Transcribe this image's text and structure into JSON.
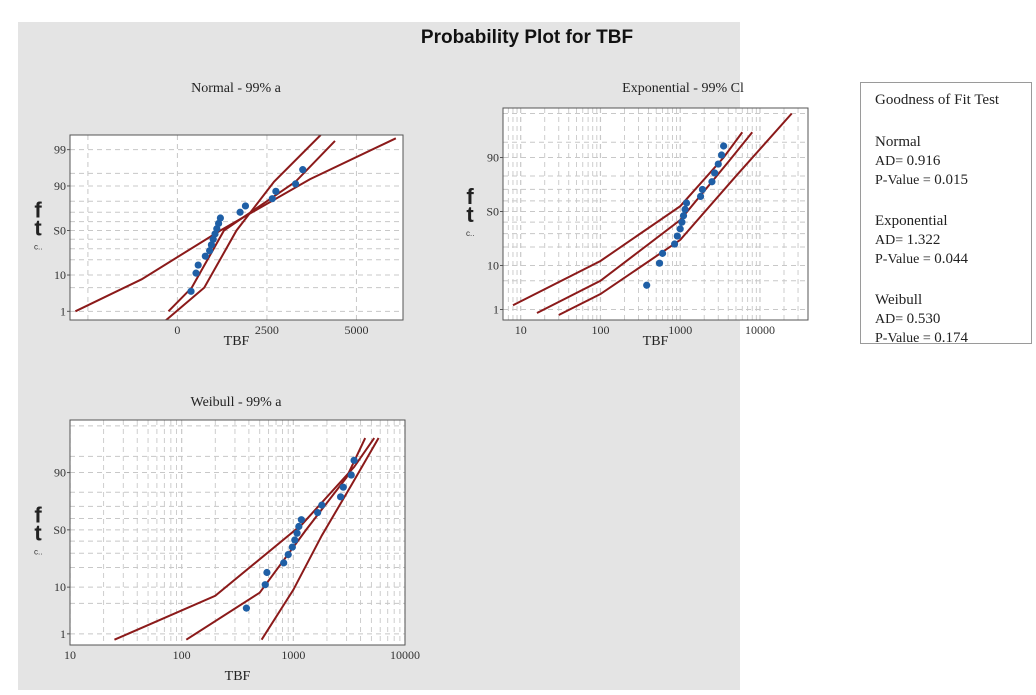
{
  "figure_title": "Probability Plot for TBF",
  "colors": {
    "panel_bg": "#e4e4e4",
    "plot_bg": "#ffffff",
    "fit_line": "#8b1a1a",
    "point": "#1f5fa6",
    "grid": "#c8c8c8"
  },
  "chart_data": [
    {
      "type": "scatter",
      "title": "Normal - 99% a",
      "ylabel": "ft",
      "ylabel_sub": "c..",
      "xlabel": "TBF",
      "x_scale": "linear",
      "xlim": [
        -3000,
        6300
      ],
      "x_ticks": [
        0,
        2500,
        5000
      ],
      "x_tick_labels": [
        "0",
        "2500",
        "5000"
      ],
      "y_ticks": [
        1,
        10,
        50,
        90,
        99
      ],
      "y_tick_labels": [
        "1",
        "10",
        "S0",
        "90",
        "99"
      ],
      "grid": true,
      "points": [
        {
          "x": 380,
          "y": 4
        },
        {
          "x": 520,
          "y": 11
        },
        {
          "x": 580,
          "y": 16
        },
        {
          "x": 780,
          "y": 23
        },
        {
          "x": 900,
          "y": 28
        },
        {
          "x": 950,
          "y": 34
        },
        {
          "x": 1000,
          "y": 40
        },
        {
          "x": 1050,
          "y": 46
        },
        {
          "x": 1100,
          "y": 52
        },
        {
          "x": 1150,
          "y": 58
        },
        {
          "x": 1200,
          "y": 64
        },
        {
          "x": 1750,
          "y": 70
        },
        {
          "x": 1900,
          "y": 76
        },
        {
          "x": 2650,
          "y": 82
        },
        {
          "x": 2750,
          "y": 87
        },
        {
          "x": 3300,
          "y": 91
        },
        {
          "x": 3500,
          "y": 96
        }
      ],
      "lines": [
        {
          "name": "lower",
          "points": [
            [
              -2850,
              1
            ],
            [
              -1000,
              8
            ],
            [
              1200,
              50
            ],
            [
              3700,
              93
            ],
            [
              6100,
              99.6
            ]
          ]
        },
        {
          "name": "fit",
          "points": [
            [
              -250,
              1
            ],
            [
              400,
              5
            ],
            [
              1300,
              50
            ],
            [
              3300,
              92
            ],
            [
              4400,
              99.5
            ]
          ]
        },
        {
          "name": "upper",
          "points": [
            [
              -400,
              0.4
            ],
            [
              750,
              5
            ],
            [
              1650,
              50
            ],
            [
              2700,
              92
            ],
            [
              4000,
              99.7
            ]
          ]
        }
      ]
    },
    {
      "type": "scatter",
      "title": "Exponential - 99% Cl",
      "ylabel": "ft",
      "ylabel_sub": "c..",
      "xlabel": "TBF",
      "x_scale": "log",
      "xlim": [
        6,
        40000
      ],
      "x_ticks": [
        10,
        100,
        1000,
        10000
      ],
      "x_tick_labels": [
        "10",
        "100",
        "1000",
        "10000"
      ],
      "y_ticks": [
        1,
        10,
        50,
        90
      ],
      "y_tick_labels": [
        "1",
        "10",
        "S0",
        "90"
      ],
      "grid": true,
      "points": [
        {
          "x": 380,
          "y": 4
        },
        {
          "x": 550,
          "y": 11
        },
        {
          "x": 600,
          "y": 16
        },
        {
          "x": 850,
          "y": 22
        },
        {
          "x": 920,
          "y": 28
        },
        {
          "x": 1000,
          "y": 34
        },
        {
          "x": 1050,
          "y": 40
        },
        {
          "x": 1100,
          "y": 46
        },
        {
          "x": 1150,
          "y": 52
        },
        {
          "x": 1200,
          "y": 58
        },
        {
          "x": 1800,
          "y": 64
        },
        {
          "x": 1900,
          "y": 70
        },
        {
          "x": 2500,
          "y": 76
        },
        {
          "x": 2700,
          "y": 82
        },
        {
          "x": 3000,
          "y": 87
        },
        {
          "x": 3300,
          "y": 91
        },
        {
          "x": 3500,
          "y": 94
        }
      ],
      "lines": [
        {
          "name": "upper",
          "points": [
            [
              8,
              1.3
            ],
            [
              100,
              12
            ],
            [
              1000,
              55
            ],
            [
              3500,
              90
            ],
            [
              6000,
              97
            ]
          ]
        },
        {
          "name": "fit",
          "points": [
            [
              16,
              0.8
            ],
            [
              100,
              5
            ],
            [
              1000,
              42
            ],
            [
              4000,
              88
            ],
            [
              8000,
              97
            ]
          ]
        },
        {
          "name": "lower",
          "points": [
            [
              30,
              0.7
            ],
            [
              100,
              2.5
            ],
            [
              1000,
              25
            ],
            [
              5000,
              80
            ],
            [
              25000,
              99
            ]
          ]
        }
      ]
    },
    {
      "type": "scatter",
      "title": "Weibull - 99% a",
      "ylabel": "ft",
      "ylabel_sub": "c..",
      "xlabel": "TBF",
      "x_scale": "log",
      "xlim": [
        10,
        10000
      ],
      "x_ticks": [
        10,
        100,
        1000,
        10000
      ],
      "x_tick_labels": [
        "10",
        "100",
        "1000",
        "10000"
      ],
      "y_ticks": [
        1,
        10,
        50,
        90
      ],
      "y_tick_labels": [
        "1",
        "10",
        "S0",
        "90"
      ],
      "grid": true,
      "points": [
        {
          "x": 380,
          "y": 4
        },
        {
          "x": 560,
          "y": 11
        },
        {
          "x": 580,
          "y": 17
        },
        {
          "x": 820,
          "y": 23
        },
        {
          "x": 900,
          "y": 29
        },
        {
          "x": 980,
          "y": 35
        },
        {
          "x": 1030,
          "y": 41
        },
        {
          "x": 1080,
          "y": 47
        },
        {
          "x": 1120,
          "y": 53
        },
        {
          "x": 1180,
          "y": 59
        },
        {
          "x": 1650,
          "y": 65
        },
        {
          "x": 1800,
          "y": 71
        },
        {
          "x": 2650,
          "y": 77
        },
        {
          "x": 2800,
          "y": 83
        },
        {
          "x": 3300,
          "y": 89
        },
        {
          "x": 3500,
          "y": 94
        }
      ],
      "lines": [
        {
          "name": "upper",
          "points": [
            [
              25,
              0.7
            ],
            [
              200,
              7
            ],
            [
              1200,
              55
            ],
            [
              3500,
              92
            ],
            [
              5300,
              98
            ]
          ]
        },
        {
          "name": "fit",
          "points": [
            [
              110,
              0.7
            ],
            [
              500,
              8
            ],
            [
              1300,
              50
            ],
            [
              3000,
              88
            ],
            [
              4400,
              98
            ]
          ]
        },
        {
          "name": "lower",
          "points": [
            [
              520,
              0.7
            ],
            [
              1000,
              9
            ],
            [
              1800,
              45
            ],
            [
              3300,
              84
            ],
            [
              5800,
              98
            ]
          ]
        }
      ]
    }
  ],
  "gof": {
    "title": "Goodness of Fit Test",
    "groups": [
      {
        "name": "Normal",
        "ad_label": "AD=",
        "ad_value": "0.916",
        "p_label": "P-Value =",
        "p_value": "0.015"
      },
      {
        "name": "Exponential",
        "ad_label": "AD=",
        "ad_value": "1.322",
        "p_label": "P-Value =",
        "p_value": "0.044"
      },
      {
        "name": "Weibull",
        "ad_label": "AD=",
        "ad_value": "0.530",
        "p_label": "P-Value =",
        "p_value": "0.174"
      }
    ]
  }
}
